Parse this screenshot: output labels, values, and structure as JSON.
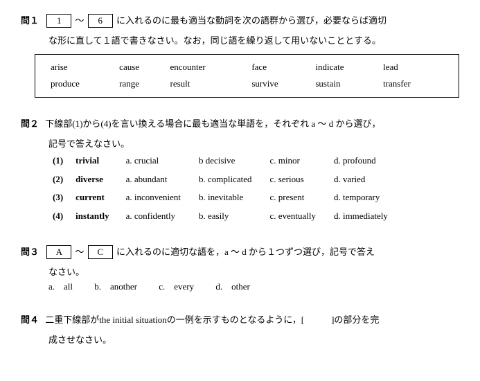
{
  "q1": {
    "label": "問１",
    "box1": "1",
    "sep": "～",
    "box6": "6",
    "text1": "に入れるのに最も適当な動詞を次の語群から選び，必要ならば適切",
    "text2": "な形に直して１語で書きなさい。なお，同じ語を繰り返して用いないこととする。",
    "words": [
      [
        "arise",
        "cause",
        "encounter",
        "face",
        "indicate",
        "lead"
      ],
      [
        "produce",
        "range",
        "result",
        "survive",
        "sustain",
        "transfer"
      ]
    ]
  },
  "q2": {
    "label": "問２",
    "text1": "下線部(1)から(4)を言い換える場合に最も適当な単語を，それぞれ a ～ d から選び，",
    "text2": "記号で答えなさい。",
    "rows": [
      {
        "n": "(1)",
        "w": "trivial",
        "a": "a. crucial",
        "b": "b decisive",
        "c": "c. minor",
        "d": "d. profound"
      },
      {
        "n": "(2)",
        "w": "diverse",
        "a": "a. abundant",
        "b": "b. complicated",
        "c": "c. serious",
        "d": "d. varied"
      },
      {
        "n": "(3)",
        "w": "current",
        "a": "a. inconvenient",
        "b": "b. inevitable",
        "c": "c. present",
        "d": "d. temporary"
      },
      {
        "n": "(4)",
        "w": "instantly",
        "a": "a. confidently",
        "b": "b. easily",
        "c": "c. eventually",
        "d": "d. immediately"
      }
    ]
  },
  "q3": {
    "label": "問３",
    "boxA": "A",
    "sep": "～",
    "boxC": "C",
    "text1": "に入れるのに適切な語を，a ～ d から１つずつ選び，記号で答え",
    "text2": "なさい。",
    "opts": {
      "a": "a.　all",
      "b": "b.　another",
      "c": "c.　every",
      "d": "d.　other"
    }
  },
  "q4": {
    "label": "問４",
    "text1a": "二重下線部が",
    "text1b": "the initial situation",
    "text1c": "の一例を示すものとなるように，[　　　]の部分を完",
    "text2": "成させなさい。"
  }
}
